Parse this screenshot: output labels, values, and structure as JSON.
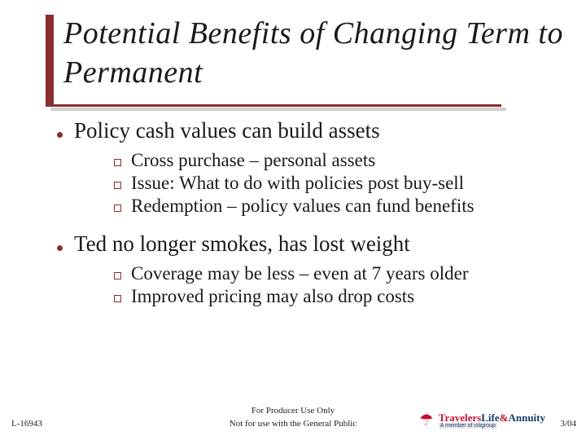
{
  "title": "Potential Benefits of Changing Term to Permanent",
  "bullets": [
    {
      "text": "Policy cash values can build assets",
      "subs": [
        "Cross purchase – personal assets",
        "Issue: What to do with policies post buy-sell",
        "Redemption – policy values can fund benefits"
      ]
    },
    {
      "text": "Ted no longer smokes, has lost weight",
      "subs": [
        "Coverage may be less – even at 7 years older",
        "Improved pricing may also drop costs"
      ]
    }
  ],
  "footer": {
    "left": "L-16943",
    "center_line1": "For Producer Use Only",
    "center_line2": "Not for use with the General Public",
    "right": "3/04",
    "logo_brand1": "Travelers",
    "logo_brand2": "Life",
    "logo_amp": "&",
    "logo_brand3": "Annuity",
    "logo_sub": "A member of citigroup"
  },
  "colors": {
    "accent": "#8b2e2e",
    "text": "#1a1a1a",
    "logo_red": "#c41230",
    "logo_blue": "#1a3a6e",
    "background": "#ffffff"
  }
}
